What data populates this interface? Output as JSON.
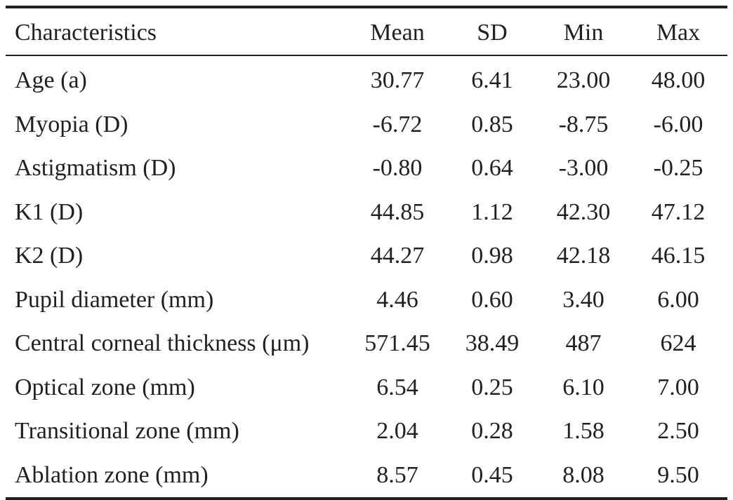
{
  "table": {
    "headers": [
      "Characteristics",
      "Mean",
      "SD",
      "Min",
      "Max"
    ],
    "rows": [
      {
        "label": "Age (a)",
        "mean": "30.77",
        "sd": "6.41",
        "min": "23.00",
        "max": "48.00"
      },
      {
        "label": "Myopia (D)",
        "mean": "-6.72",
        "sd": "0.85",
        "min": "-8.75",
        "max": "-6.00"
      },
      {
        "label": "Astigmatism (D)",
        "mean": "-0.80",
        "sd": "0.64",
        "min": "-3.00",
        "max": "-0.25"
      },
      {
        "label": "K1 (D)",
        "mean": "44.85",
        "sd": "1.12",
        "min": "42.30",
        "max": "47.12"
      },
      {
        "label": "K2 (D)",
        "mean": "44.27",
        "sd": "0.98",
        "min": "42.18",
        "max": "46.15"
      },
      {
        "label": "Pupil diameter (mm)",
        "mean": "4.46",
        "sd": "0.60",
        "min": "3.40",
        "max": "6.00"
      },
      {
        "label": "Central corneal thickness (μm)",
        "mean": "571.45",
        "sd": "38.49",
        "min": "487",
        "max": "624"
      },
      {
        "label": "Optical zone (mm)",
        "mean": "6.54",
        "sd": "0.25",
        "min": "6.10",
        "max": "7.00"
      },
      {
        "label": "Transitional zone (mm)",
        "mean": "2.04",
        "sd": "0.28",
        "min": "1.58",
        "max": "2.50"
      },
      {
        "label": "Ablation zone (mm)",
        "mean": "8.57",
        "sd": "0.45",
        "min": "8.08",
        "max": "9.50"
      }
    ]
  }
}
